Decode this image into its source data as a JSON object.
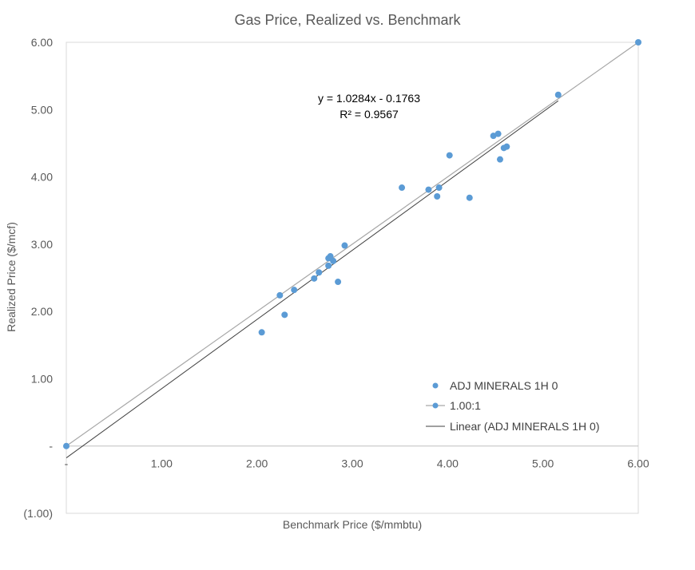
{
  "chart_data": {
    "type": "scatter",
    "title": "Gas Price, Realized vs. Benchmark",
    "xlabel": "Benchmark Price ($/mmbtu)",
    "ylabel": "Realized Price ($/mcf)",
    "xlim": [
      0,
      6
    ],
    "ylim": [
      -1,
      6
    ],
    "x_ticks": [
      {
        "value": 0,
        "label": "-"
      },
      {
        "value": 1,
        "label": "1.00"
      },
      {
        "value": 2,
        "label": "2.00"
      },
      {
        "value": 3,
        "label": "3.00"
      },
      {
        "value": 4,
        "label": "4.00"
      },
      {
        "value": 5,
        "label": "5.00"
      },
      {
        "value": 6,
        "label": "6.00"
      }
    ],
    "y_ticks": [
      {
        "value": -1,
        "label": "(1.00)"
      },
      {
        "value": 0,
        "label": "-"
      },
      {
        "value": 1,
        "label": "1.00"
      },
      {
        "value": 2,
        "label": "2.00"
      },
      {
        "value": 3,
        "label": "3.00"
      },
      {
        "value": 4,
        "label": "4.00"
      },
      {
        "value": 5,
        "label": "5.00"
      },
      {
        "value": 6,
        "label": "6.00"
      }
    ],
    "grid": false,
    "legend_position": "bottom-right",
    "series": [
      {
        "name": "ADJ MINERALS 1H 0",
        "kind": "markers",
        "color": "#5b9bd5",
        "points": [
          [
            2.05,
            1.69
          ],
          [
            2.24,
            2.24
          ],
          [
            2.29,
            1.95
          ],
          [
            2.39,
            2.32
          ],
          [
            2.6,
            2.49
          ],
          [
            2.65,
            2.58
          ],
          [
            2.75,
            2.68
          ],
          [
            2.75,
            2.79
          ],
          [
            2.77,
            2.82
          ],
          [
            2.8,
            2.75
          ],
          [
            2.85,
            2.44
          ],
          [
            2.92,
            2.98
          ],
          [
            3.52,
            3.84
          ],
          [
            3.8,
            3.81
          ],
          [
            3.89,
            3.71
          ],
          [
            3.91,
            3.84
          ],
          [
            4.02,
            4.32
          ],
          [
            4.23,
            3.69
          ],
          [
            4.48,
            4.61
          ],
          [
            4.53,
            4.64
          ],
          [
            4.55,
            4.26
          ],
          [
            4.59,
            4.43
          ],
          [
            4.62,
            4.45
          ],
          [
            5.16,
            5.22
          ]
        ]
      },
      {
        "name": "1.00:1",
        "kind": "line-with-marker",
        "color": "#a6a6a6",
        "marker_color": "#5b9bd5",
        "points": [
          [
            0,
            0
          ],
          [
            6,
            6
          ]
        ]
      },
      {
        "name": "Linear (ADJ MINERALS 1H 0)",
        "kind": "trendline",
        "color": "#404040",
        "slope": 1.0284,
        "intercept": -0.1763,
        "x_range": [
          0,
          5.16
        ]
      }
    ],
    "annotation": {
      "equation": "y = 1.0284x - 0.1763",
      "r_squared": "R² = 0.9567"
    }
  }
}
